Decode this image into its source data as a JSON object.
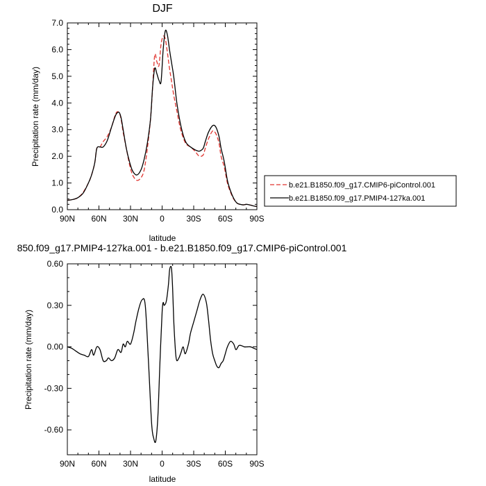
{
  "chart_data": [
    {
      "type": "line",
      "title": "DJF",
      "xlabel": "latitude",
      "ylabel": "Precipitation rate (mm/day)",
      "xlim": [
        90,
        -90
      ],
      "ylim": [
        0,
        7
      ],
      "xticks": [
        90,
        60,
        30,
        0,
        -30,
        -60,
        -90
      ],
      "xtick_labels": [
        "90N",
        "60N",
        "30N",
        "0",
        "30S",
        "60S",
        "90S"
      ],
      "yticks": [
        0,
        1,
        2,
        3,
        4,
        5,
        6,
        7
      ],
      "ytick_labels": [
        "0.0",
        "1.0",
        "2.0",
        "3.0",
        "4.0",
        "5.0",
        "6.0",
        "7.0"
      ],
      "legend_position": "outside-right",
      "series": [
        {
          "name": "b.e21.B1850.f09_g17.CMIP6-piControl.001",
          "color": "#e0332e",
          "dash": "dashed",
          "x": [
            90,
            85,
            80,
            75,
            70,
            67,
            64,
            62,
            59,
            56,
            52,
            48,
            44,
            41,
            39,
            37,
            34,
            31,
            28,
            24,
            20,
            17,
            14,
            11,
            9,
            7,
            5,
            3,
            1,
            -1,
            -3,
            -5,
            -7,
            -9,
            -11,
            -14,
            -17,
            -20,
            -23,
            -27,
            -31,
            -34,
            -36,
            -39,
            -41,
            -44,
            -48,
            -51,
            -54,
            -56,
            -59,
            -62,
            -65,
            -68,
            -71,
            -74,
            -77,
            -80,
            -83,
            -85,
            -88,
            -90
          ],
          "y": [
            0.35,
            0.38,
            0.45,
            0.65,
            1.0,
            1.3,
            1.75,
            2.3,
            2.35,
            2.55,
            2.75,
            3.1,
            3.6,
            3.65,
            3.4,
            2.9,
            2.3,
            1.7,
            1.3,
            1.1,
            1.2,
            1.5,
            2.3,
            3.4,
            4.6,
            5.8,
            5.55,
            5.4,
            6.2,
            6.5,
            6.4,
            5.9,
            5.3,
            4.8,
            4.3,
            3.7,
            3.1,
            2.7,
            2.45,
            2.35,
            2.2,
            2.05,
            2.0,
            2.05,
            2.3,
            2.65,
            2.95,
            2.85,
            2.5,
            2.0,
            1.6,
            1.0,
            0.65,
            0.4,
            0.25,
            0.2,
            0.18,
            0.2,
            0.18,
            0.16,
            0.13,
            0.12
          ]
        },
        {
          "name": "b.e21.B1850.f09_g17.PMIP4-127ka.001",
          "color": "#000000",
          "dash": "solid",
          "x": [
            90,
            85,
            80,
            75,
            70,
            67,
            64,
            62,
            59,
            56,
            52,
            48,
            44,
            41,
            39,
            37,
            34,
            31,
            28,
            24,
            20,
            17,
            14,
            11,
            9,
            7,
            5,
            3,
            1,
            -1,
            -3,
            -5,
            -7,
            -9,
            -11,
            -14,
            -17,
            -20,
            -23,
            -27,
            -31,
            -34,
            -36,
            -39,
            -41,
            -44,
            -48,
            -51,
            -54,
            -56,
            -59,
            -62,
            -65,
            -68,
            -71,
            -74,
            -77,
            -80,
            -83,
            -85,
            -88,
            -90
          ],
          "y": [
            0.35,
            0.38,
            0.45,
            0.62,
            1.0,
            1.3,
            1.75,
            2.3,
            2.35,
            2.35,
            2.6,
            3.1,
            3.55,
            3.65,
            3.45,
            3.0,
            2.3,
            1.8,
            1.45,
            1.3,
            1.5,
            1.9,
            2.5,
            3.4,
            4.6,
            5.3,
            5.1,
            4.85,
            4.8,
            6.0,
            6.7,
            6.55,
            6.0,
            5.5,
            5.0,
            4.0,
            3.3,
            2.8,
            2.5,
            2.35,
            2.25,
            2.2,
            2.2,
            2.3,
            2.55,
            2.9,
            3.15,
            3.1,
            2.75,
            2.3,
            1.8,
            1.1,
            0.7,
            0.42,
            0.25,
            0.2,
            0.18,
            0.2,
            0.18,
            0.16,
            0.13,
            0.12
          ]
        }
      ]
    },
    {
      "type": "line",
      "title": "850.f09_g17.PMIP4-127ka.001 - b.e21.B1850.f09_g17.CMIP6-piControl.001",
      "xlabel": "latitude",
      "ylabel": "Precipitation rate (mm/day)",
      "xlim": [
        90,
        -90
      ],
      "ylim": [
        -0.78,
        0.6
      ],
      "xticks": [
        90,
        60,
        30,
        0,
        -30,
        -60,
        -90
      ],
      "xtick_labels": [
        "90N",
        "60N",
        "30N",
        "0",
        "30S",
        "60S",
        "90S"
      ],
      "yticks": [
        0.6,
        0.3,
        0,
        -0.3,
        -0.6
      ],
      "ytick_labels": [
        "0.60",
        "0.30",
        "0.00",
        "-0.30",
        "-0.60"
      ],
      "series": [
        {
          "color": "#000000",
          "dash": "solid",
          "x": [
            90,
            86,
            82,
            78,
            74,
            70,
            67,
            65,
            62,
            59,
            56,
            53,
            51,
            48,
            45,
            42,
            39,
            37,
            35,
            33,
            30,
            27,
            25,
            22,
            19,
            16,
            13,
            10,
            8,
            6,
            4,
            2,
            0,
            -1,
            -2,
            -4,
            -6,
            -7,
            -8,
            -9,
            -10,
            -11,
            -12,
            -13,
            -14,
            -16,
            -18,
            -20,
            -22,
            -25,
            -27,
            -30,
            -33,
            -36,
            -39,
            -42,
            -44,
            -46,
            -48,
            -50,
            -52,
            -54,
            -56,
            -58,
            -60,
            -62,
            -65,
            -68,
            -70,
            -72,
            -73,
            -75,
            -78,
            -81,
            -84,
            -87,
            -90
          ],
          "y": [
            0.0,
            -0.01,
            -0.03,
            -0.05,
            -0.06,
            -0.07,
            -0.02,
            -0.06,
            0.0,
            -0.02,
            -0.1,
            -0.1,
            -0.08,
            -0.1,
            -0.08,
            -0.02,
            -0.04,
            0.02,
            0.0,
            0.04,
            0.02,
            0.1,
            0.18,
            0.28,
            0.34,
            0.3,
            -0.1,
            -0.55,
            -0.66,
            -0.68,
            -0.5,
            -0.1,
            0.25,
            0.32,
            0.3,
            0.33,
            0.45,
            0.55,
            0.58,
            0.56,
            0.42,
            0.2,
            0.05,
            -0.06,
            -0.1,
            -0.08,
            -0.04,
            0.0,
            -0.05,
            0.02,
            0.1,
            0.18,
            0.26,
            0.34,
            0.38,
            0.32,
            0.2,
            0.05,
            -0.05,
            -0.1,
            -0.14,
            -0.15,
            -0.12,
            -0.1,
            -0.05,
            0.0,
            0.04,
            0.02,
            -0.02,
            0.0,
            0.01,
            0.01,
            0.0,
            0.0,
            0.0,
            -0.01,
            -0.02
          ]
        }
      ]
    }
  ]
}
